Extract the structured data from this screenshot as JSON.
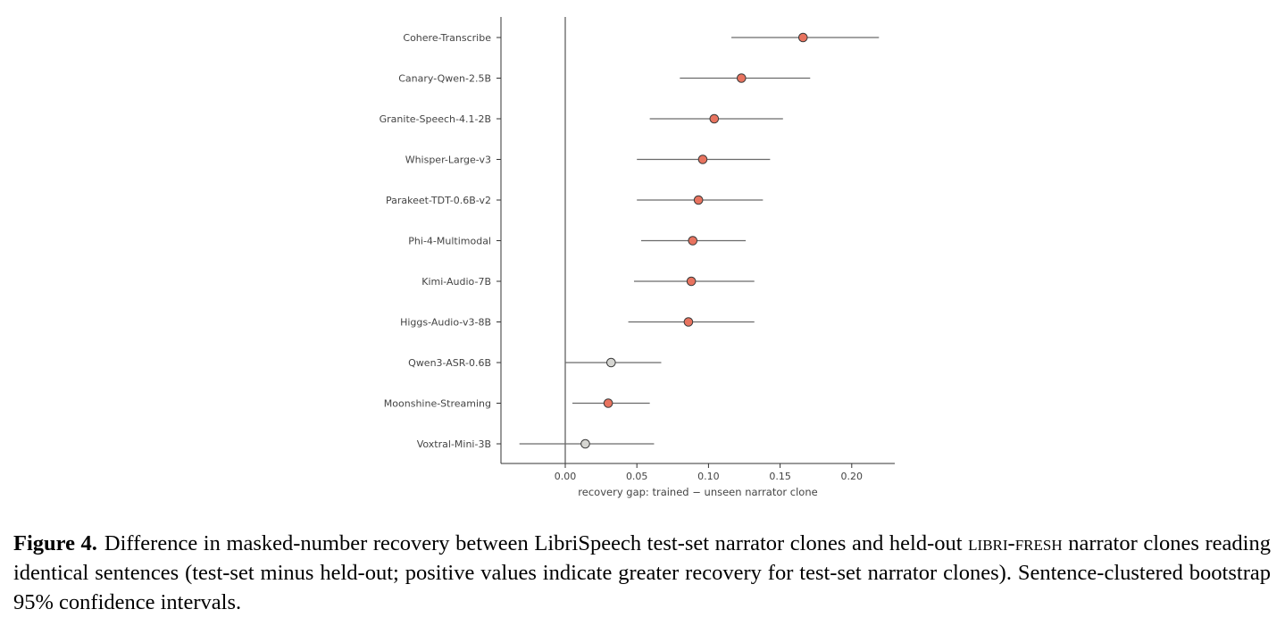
{
  "chart_data": {
    "type": "forest",
    "xlabel": "recovery gap: trained − unseen narrator clone",
    "xlim": [
      -0.045,
      0.23
    ],
    "xticks": [
      0.0,
      0.05,
      0.1,
      0.15,
      0.2
    ],
    "xtick_labels": [
      "0.00",
      "0.05",
      "0.10",
      "0.15",
      "0.20"
    ],
    "reference_line": 0.0,
    "grid": false,
    "colors": {
      "significant": "#e8735f",
      "not_significant": "#d6d6d2",
      "ci_line": "#6a6a6a",
      "axis": "#333333"
    },
    "rows": [
      {
        "label": "Cohere-Transcribe",
        "estimate": 0.166,
        "ci_low": 0.116,
        "ci_high": 0.219,
        "significant": true
      },
      {
        "label": "Canary-Qwen-2.5B",
        "estimate": 0.123,
        "ci_low": 0.08,
        "ci_high": 0.171,
        "significant": true
      },
      {
        "label": "Granite-Speech-4.1-2B",
        "estimate": 0.104,
        "ci_low": 0.059,
        "ci_high": 0.152,
        "significant": true
      },
      {
        "label": "Whisper-Large-v3",
        "estimate": 0.096,
        "ci_low": 0.05,
        "ci_high": 0.143,
        "significant": true
      },
      {
        "label": "Parakeet-TDT-0.6B-v2",
        "estimate": 0.093,
        "ci_low": 0.05,
        "ci_high": 0.138,
        "significant": true
      },
      {
        "label": "Phi-4-Multimodal",
        "estimate": 0.089,
        "ci_low": 0.053,
        "ci_high": 0.126,
        "significant": true
      },
      {
        "label": "Kimi-Audio-7B",
        "estimate": 0.088,
        "ci_low": 0.048,
        "ci_high": 0.132,
        "significant": true
      },
      {
        "label": "Higgs-Audio-v3-8B",
        "estimate": 0.086,
        "ci_low": 0.044,
        "ci_high": 0.132,
        "significant": true
      },
      {
        "label": "Qwen3-ASR-0.6B",
        "estimate": 0.032,
        "ci_low": 0.0,
        "ci_high": 0.067,
        "significant": false
      },
      {
        "label": "Moonshine-Streaming",
        "estimate": 0.03,
        "ci_low": 0.005,
        "ci_high": 0.059,
        "significant": true
      },
      {
        "label": "Voxtral-Mini-3B",
        "estimate": 0.014,
        "ci_low": -0.032,
        "ci_high": 0.062,
        "significant": false
      }
    ]
  },
  "caption": {
    "label": "Figure 4.",
    "text_before": "Difference in masked-number recovery between LibriSpeech test-set narrator clones and held-out ",
    "smallcaps": "libri-fresh",
    "text_after": " narrator clones reading identical sentences (test-set minus held-out; positive values indicate greater recovery for test-set narrator clones). Sentence-clustered bootstrap 95% confidence intervals."
  }
}
